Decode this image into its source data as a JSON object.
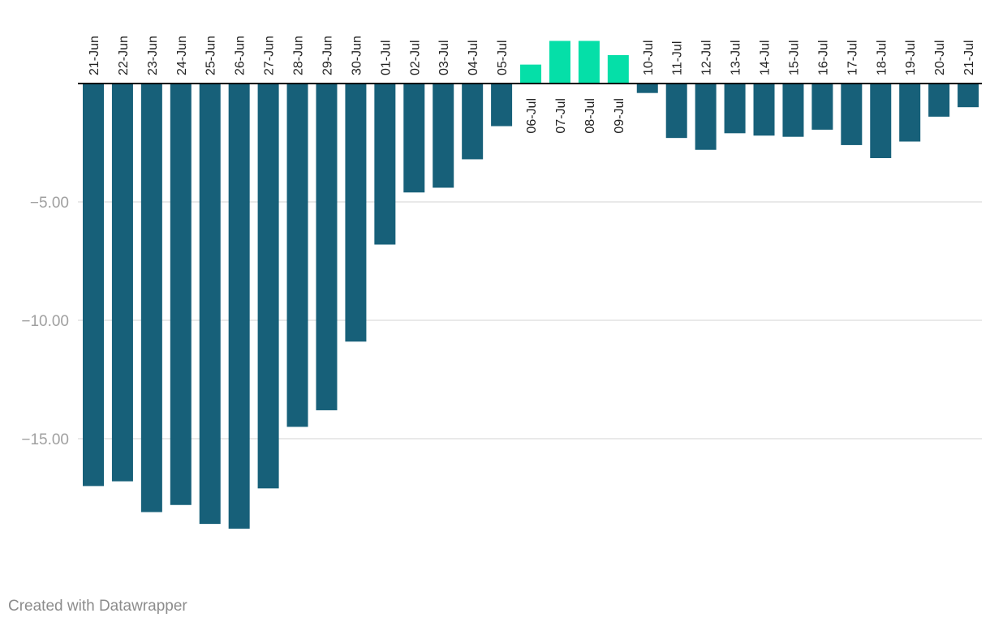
{
  "chart_data": {
    "type": "bar",
    "title": "",
    "xlabel": "",
    "ylabel": "",
    "ylim": [
      -20,
      1.75
    ],
    "yticks": [
      -5,
      -10,
      -15
    ],
    "ytick_labels": [
      "−5.00",
      "−10.00",
      "−15.00"
    ],
    "grid": true,
    "categories": [
      "21-Jun",
      "22-Jun",
      "23-Jun",
      "24-Jun",
      "25-Jun",
      "26-Jun",
      "27-Jun",
      "28-Jun",
      "29-Jun",
      "30-Jun",
      "01-Jul",
      "02-Jul",
      "03-Jul",
      "04-Jul",
      "05-Jul",
      "06-Jul",
      "07-Jul",
      "08-Jul",
      "09-Jul",
      "10-Jul",
      "11-Jul",
      "12-Jul",
      "13-Jul",
      "14-Jul",
      "15-Jul",
      "16-Jul",
      "17-Jul",
      "18-Jul",
      "19-Jul",
      "20-Jul",
      "21-Jul"
    ],
    "values": [
      -17.0,
      -16.8,
      -18.1,
      -17.8,
      -18.6,
      -18.8,
      -17.1,
      -14.5,
      -13.8,
      -10.9,
      -6.8,
      -4.6,
      -4.4,
      -3.2,
      -1.8,
      0.8,
      1.8,
      1.8,
      1.2,
      -0.4,
      -2.3,
      -2.8,
      -2.1,
      -2.2,
      -2.25,
      -1.95,
      -2.6,
      -3.15,
      -2.45,
      -1.4,
      -1.0
    ],
    "colors": {
      "negative": "#176079",
      "positive": "#05dfa8",
      "grid": "#e2e2e2",
      "zero_line": "#000000"
    }
  },
  "credit": "Created with Datawrapper"
}
